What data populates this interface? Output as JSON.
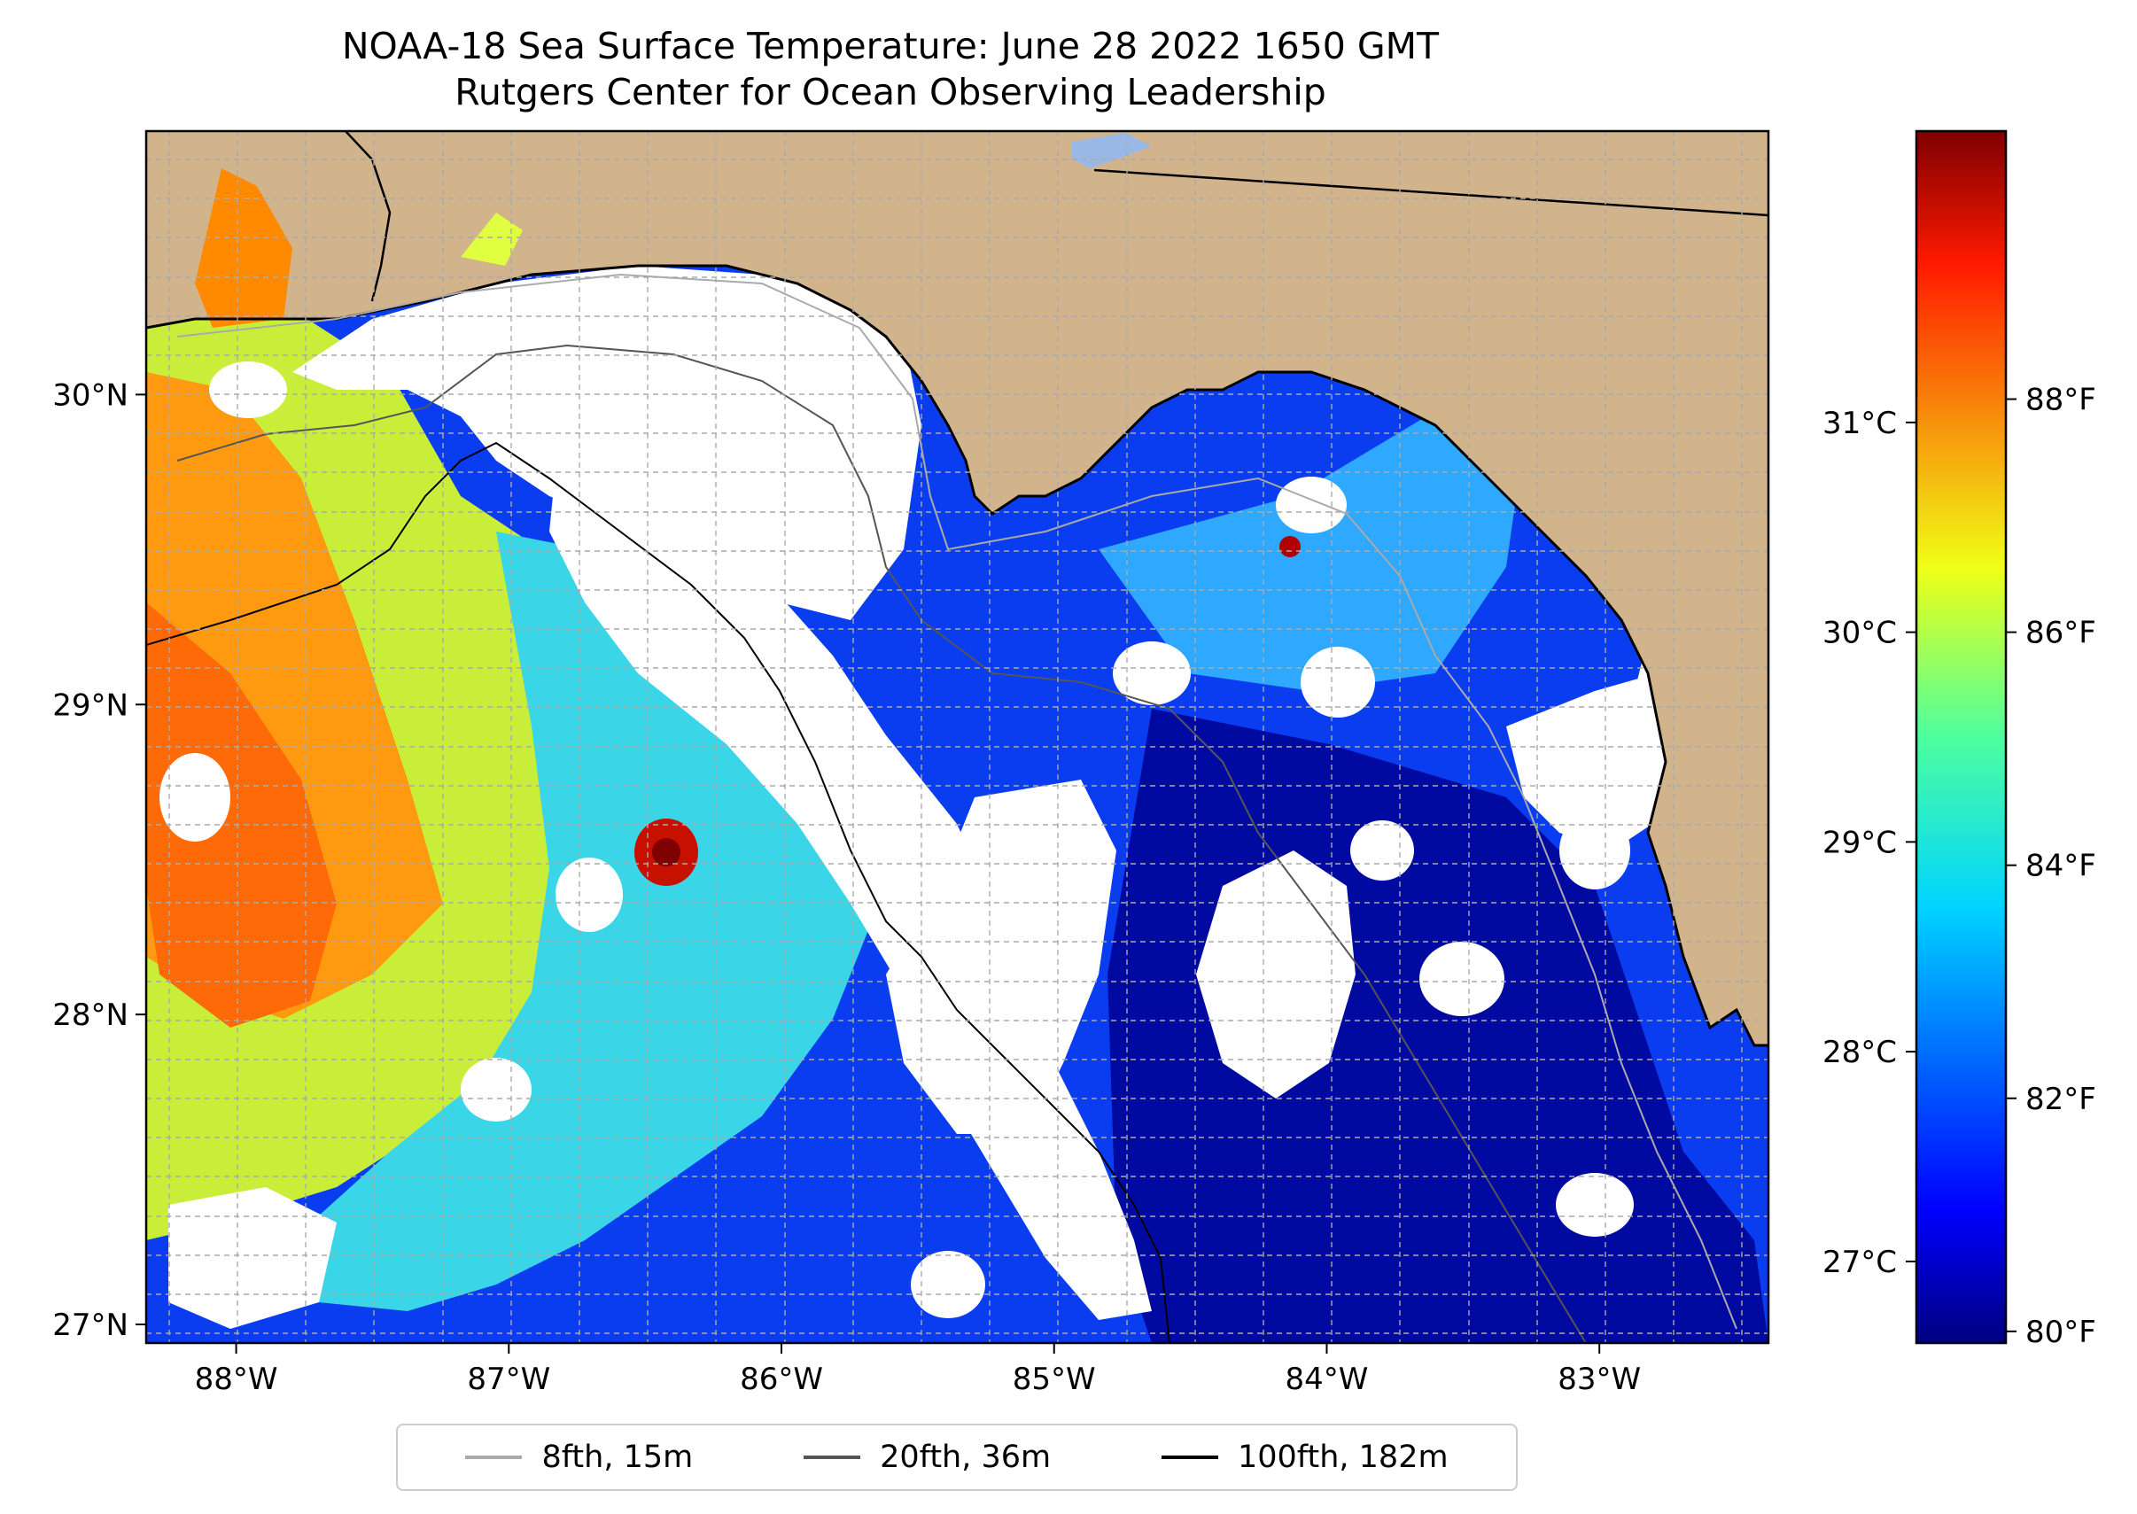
{
  "title": {
    "line1": "NOAA-18 Sea Surface Temperature: June 28 2022 1650 GMT",
    "line2": "Rutgers Center for Ocean Observing Leadership"
  },
  "map": {
    "lon_range": [
      -88.33,
      -82.38
    ],
    "lat_range": [
      26.94,
      30.85
    ],
    "lon_ticks": [
      {
        "value": -88,
        "label": "88°W"
      },
      {
        "value": -87,
        "label": "87°W"
      },
      {
        "value": -86,
        "label": "86°W"
      },
      {
        "value": -85,
        "label": "85°W"
      },
      {
        "value": -84,
        "label": "84°W"
      },
      {
        "value": -83,
        "label": "83°W"
      }
    ],
    "lat_ticks": [
      {
        "value": 30,
        "label": "30°N"
      },
      {
        "value": 29,
        "label": "29°N"
      },
      {
        "value": 28,
        "label": "28°N"
      },
      {
        "value": 27,
        "label": "27°N"
      }
    ],
    "colors": {
      "land": "#d2b48c",
      "lake": "#9ab8e6",
      "no_data": "#ffffff",
      "coastline": "#000000",
      "grid": "#aaaaaa"
    }
  },
  "colorbar": {
    "colormap": "jet",
    "celsius_ticks": [
      {
        "value": 31,
        "label": "31°C"
      },
      {
        "value": 30,
        "label": "30°C"
      },
      {
        "value": 29,
        "label": "29°C"
      },
      {
        "value": 28,
        "label": "28°C"
      },
      {
        "value": 27,
        "label": "27°C"
      }
    ],
    "fahrenheit_ticks": [
      {
        "value": 88,
        "label": "88°F"
      },
      {
        "value": 86,
        "label": "86°F"
      },
      {
        "value": 84,
        "label": "84°F"
      },
      {
        "value": 82,
        "label": "82°F"
      },
      {
        "value": 80,
        "label": "80°F"
      }
    ],
    "range_f": [
      79.9,
      90.3
    ]
  },
  "legend": {
    "entries": [
      {
        "label": "8fth, 15m",
        "color": "#aaaaaa"
      },
      {
        "label": "20fth, 36m",
        "color": "#555555"
      },
      {
        "label": "100fth, 182m",
        "color": "#000000"
      }
    ]
  }
}
